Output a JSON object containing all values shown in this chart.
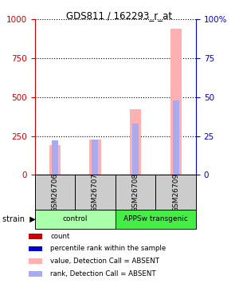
{
  "title": "GDS811 / 162293_r_at",
  "samples": [
    "GSM26706",
    "GSM26707",
    "GSM26708",
    "GSM26709"
  ],
  "ylim_left": [
    0,
    1000
  ],
  "ylim_right": [
    0,
    100
  ],
  "yticks_left": [
    0,
    250,
    500,
    750,
    1000
  ],
  "yticks_right": [
    0,
    25,
    50,
    75,
    100
  ],
  "left_tick_color": "#cc0000",
  "right_tick_color": "#0000cc",
  "absent_value_bars": [
    190,
    230,
    420,
    940
  ],
  "absent_rank_bars": [
    22,
    23,
    33,
    48
  ],
  "absent_value_color": "#ffb0b0",
  "absent_rank_color": "#aaaaee",
  "count_color": "#cc0000",
  "percentile_color": "#0000cc",
  "group_spans": [
    {
      "start": 0,
      "end": 1,
      "label": "control",
      "color": "#aaffaa"
    },
    {
      "start": 2,
      "end": 3,
      "label": "APPSw transgenic",
      "color": "#44ee44"
    }
  ],
  "legend_items": [
    {
      "label": "count",
      "color": "#cc0000"
    },
    {
      "label": "percentile rank within the sample",
      "color": "#0000cc"
    },
    {
      "label": "value, Detection Call = ABSENT",
      "color": "#ffb0b0"
    },
    {
      "label": "rank, Detection Call = ABSENT",
      "color": "#aaaaee"
    }
  ]
}
